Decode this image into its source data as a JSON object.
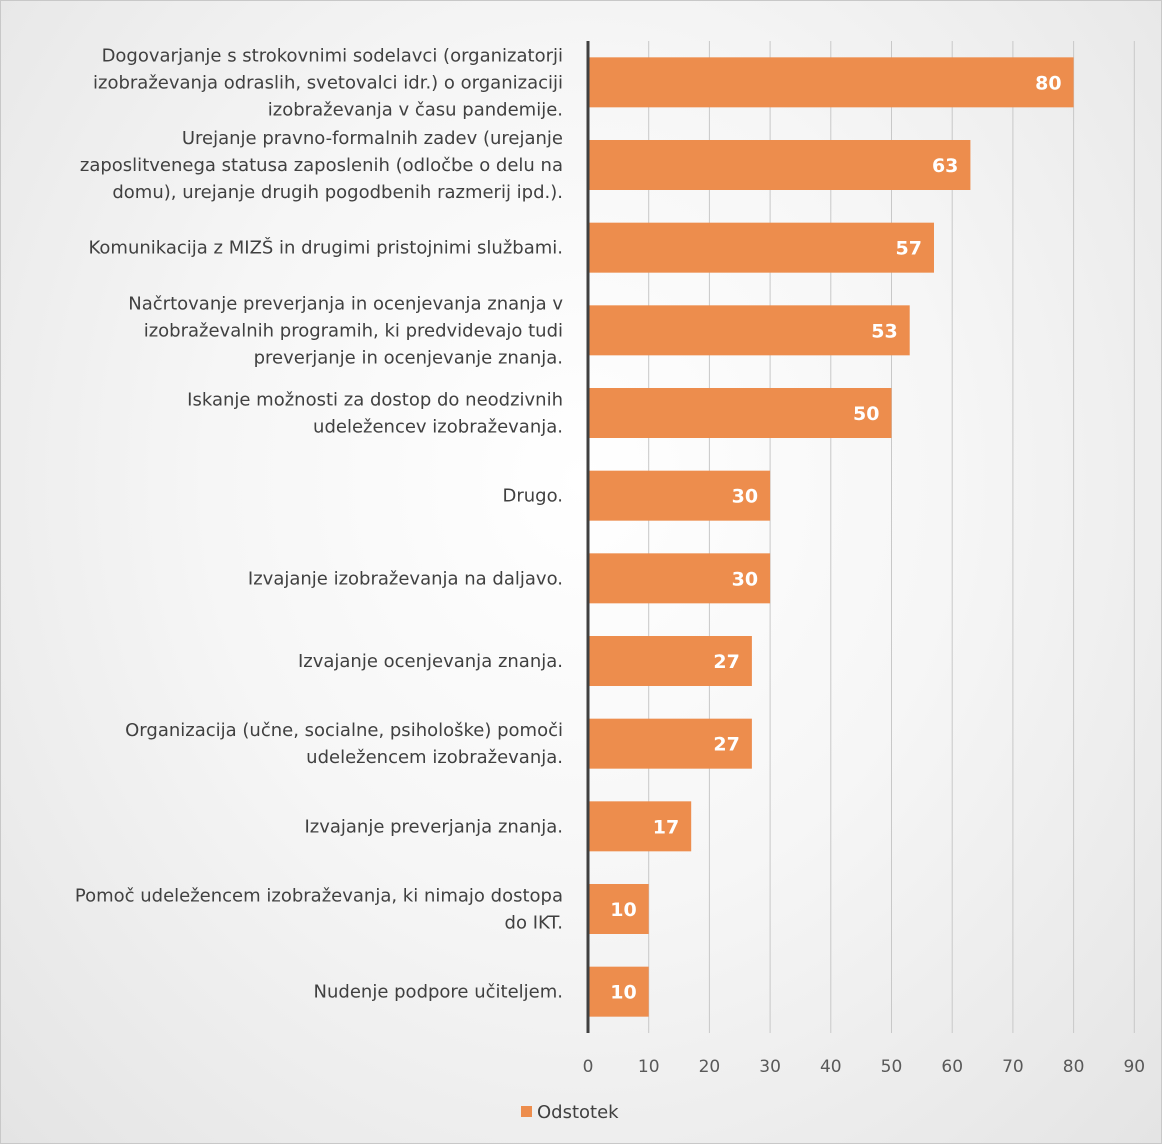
{
  "chart_data": {
    "type": "bar",
    "orientation": "horizontal",
    "categories": [
      [
        "Dogovarjanje s strokovnimi sodelavci (organizatorji",
        "izobraževanja odraslih, svetovalci idr.) o organizaciji",
        "izobraževanja v času pandemije."
      ],
      [
        "Urejanje pravno-formalnih zadev (urejanje",
        "zaposlitvenega statusa zaposlenih (odločbe o delu na",
        "domu), urejanje drugih pogodbenih razmerij ipd.)."
      ],
      [
        "Komunikacija z MIZŠ in drugimi pristojnimi službami."
      ],
      [
        "Načrtovanje preverjanja in ocenjevanja znanja v",
        "izobraževalnih programih, ki predvidevajo tudi",
        "preverjanje in ocenjevanje znanja."
      ],
      [
        "Iskanje možnosti za dostop do neodzivnih",
        "udeležencev izobraževanja."
      ],
      [
        "Drugo."
      ],
      [
        "Izvajanje izobraževanja na daljavo."
      ],
      [
        "Izvajanje ocenjevanja znanja."
      ],
      [
        "Organizacija (učne, socialne, psihološke) pomoči",
        "udeležencem izobraževanja."
      ],
      [
        "Izvajanje preverjanja znanja."
      ],
      [
        "Pomoč udeležencem izobraževanja, ki nimajo dostopa",
        "do IKT."
      ],
      [
        "Nudenje podpore učiteljem."
      ]
    ],
    "series": [
      {
        "name": "Odstotek",
        "values": [
          80,
          63,
          57,
          53,
          50,
          30,
          30,
          27,
          27,
          17,
          10,
          10
        ],
        "color": "#ed8d4d"
      }
    ],
    "data_labels": [
      "80",
      "63",
      "57",
      "53",
      "50",
      "30",
      "30",
      "27",
      "27",
      "17",
      "10",
      "10"
    ],
    "xlim": [
      0,
      90
    ],
    "xticks": [
      "0",
      "10",
      "20",
      "30",
      "40",
      "50",
      "60",
      "70",
      "80",
      "90"
    ],
    "grid": true,
    "legend": "bottom",
    "colors": {
      "bar": "#ed8d4d",
      "grid": "#c8c8c8",
      "axis": "#404040"
    }
  }
}
